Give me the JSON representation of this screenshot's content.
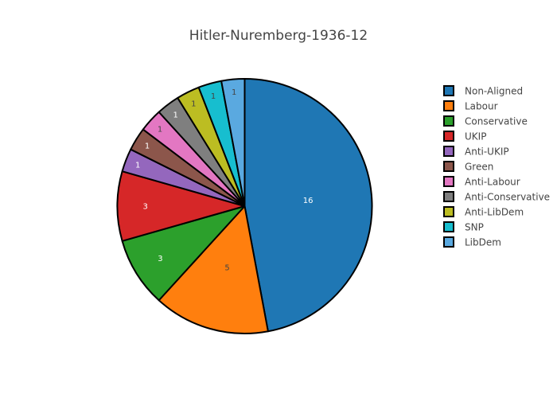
{
  "chart_data": {
    "type": "pie",
    "title": "Hitler-Nuremberg-1936-12",
    "labels": [
      "Non-Aligned",
      "Labour",
      "Conservative",
      "UKIP",
      "Anti-UKIP",
      "Green",
      "Anti-Labour",
      "Anti-Conservative",
      "Anti-LibDem",
      "SNP",
      "LibDem"
    ],
    "values": [
      16,
      5,
      3,
      3,
      1,
      1,
      1,
      1,
      1,
      1,
      1
    ],
    "colors": [
      "#1f77b4",
      "#ff7f0e",
      "#2ca02c",
      "#d62728",
      "#9467bd",
      "#8c564b",
      "#e377c2",
      "#7f7f7f",
      "#bcbd22",
      "#17becf",
      "#5aa9e0"
    ],
    "label_colors": [
      "#ffffff",
      "#444444",
      "#ffffff",
      "#ffffff",
      "#ffffff",
      "#ffffff",
      "#444444",
      "#ffffff",
      "#444444",
      "#444444",
      "#444444"
    ],
    "direction": "clockwise",
    "start": "top",
    "legend_position": "right",
    "slice_border_color": "#000000"
  }
}
